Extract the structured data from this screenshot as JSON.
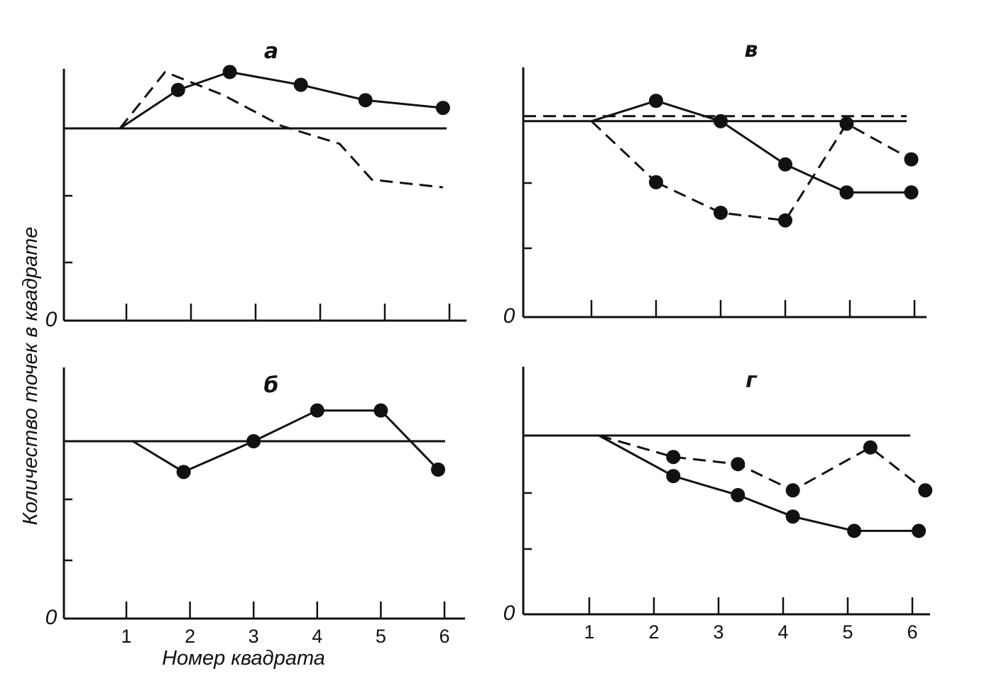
{
  "chart_data": {
    "type": "line",
    "ylabel": "Количество точек в квадрате",
    "xlabel": "Номер квадрата",
    "x_ticks": [
      "1",
      "2",
      "3",
      "4",
      "5",
      "6"
    ],
    "y_zero_label": "0",
    "reference_level": 75,
    "ylim": [
      0,
      100
    ],
    "panels": [
      {
        "id": "a",
        "title": "а",
        "series": [
          {
            "style": "solid",
            "markers": false,
            "points": [
              [
                0,
                75
              ],
              [
                1,
                75
              ],
              [
                2,
                75
              ],
              [
                3,
                75
              ],
              [
                4,
                75
              ],
              [
                5,
                75
              ],
              [
                6,
                75
              ]
            ]
          },
          {
            "style": "solid",
            "markers": true,
            "points": [
              [
                0.9,
                75
              ],
              [
                1.8,
                90
              ],
              [
                2.6,
                97
              ],
              [
                3.7,
                92
              ],
              [
                4.7,
                86
              ],
              [
                5.9,
                83
              ]
            ]
          },
          {
            "style": "dashed",
            "markers": false,
            "points": [
              [
                0.9,
                75
              ],
              [
                1.6,
                97
              ],
              [
                2.5,
                88
              ],
              [
                3.4,
                76
              ],
              [
                4.3,
                69
              ],
              [
                4.8,
                55
              ],
              [
                5.9,
                52
              ]
            ]
          }
        ]
      },
      {
        "id": "b",
        "title": "б",
        "series": [
          {
            "style": "solid",
            "markers": false,
            "points": [
              [
                0,
                75
              ],
              [
                1,
                75
              ],
              [
                2,
                75
              ],
              [
                3,
                75
              ],
              [
                4,
                75
              ],
              [
                5,
                75
              ],
              [
                6,
                75
              ]
            ]
          },
          {
            "style": "solid",
            "markers": true,
            "points": [
              [
                1.1,
                75
              ],
              [
                1.9,
                62
              ],
              [
                3.0,
                75
              ],
              [
                4.0,
                88
              ],
              [
                5.0,
                88
              ],
              [
                5.9,
                63
              ]
            ]
          }
        ]
      },
      {
        "id": "v",
        "title": "в",
        "series": [
          {
            "style": "solid",
            "markers": false,
            "points": [
              [
                0,
                77
              ],
              [
                1,
                77
              ],
              [
                2,
                77
              ],
              [
                3,
                77
              ],
              [
                4,
                77
              ],
              [
                5,
                77
              ],
              [
                6,
                77
              ]
            ]
          },
          {
            "style": "dashed",
            "markers": false,
            "points": [
              [
                0,
                79
              ],
              [
                1,
                79
              ],
              [
                2,
                79
              ],
              [
                3,
                79
              ],
              [
                4,
                79
              ],
              [
                5,
                79
              ],
              [
                6,
                79
              ]
            ]
          },
          {
            "style": "solid",
            "markers": true,
            "points": [
              [
                1.0,
                77
              ],
              [
                2.0,
                85
              ],
              [
                3.0,
                77
              ],
              [
                4.0,
                60
              ],
              [
                4.95,
                49
              ],
              [
                5.95,
                49
              ]
            ]
          },
          {
            "style": "dashed",
            "markers": false,
            "points": [
              [
                1.0,
                77
              ],
              [
                2.0,
                53
              ]
            ]
          },
          {
            "style": "dashed",
            "markers": true,
            "points": [
              [
                2.0,
                53
              ],
              [
                3.0,
                41
              ],
              [
                4.0,
                38
              ],
              [
                4.95,
                76
              ],
              [
                5.95,
                62
              ]
            ]
          }
        ]
      },
      {
        "id": "g",
        "title": "г",
        "series": [
          {
            "style": "solid",
            "markers": false,
            "points": [
              [
                0,
                75
              ],
              [
                1,
                75
              ],
              [
                2,
                75
              ],
              [
                3,
                75
              ],
              [
                4,
                75
              ],
              [
                5,
                75
              ],
              [
                6,
                75
              ]
            ]
          },
          {
            "style": "solid",
            "markers": true,
            "points": [
              [
                1.15,
                75
              ],
              [
                2.3,
                58
              ],
              [
                3.3,
                50
              ],
              [
                4.15,
                41
              ],
              [
                5.1,
                35
              ],
              [
                6.1,
                35
              ]
            ]
          },
          {
            "style": "dashed",
            "markers": false,
            "points": [
              [
                1.15,
                75
              ],
              [
                2.3,
                66
              ]
            ]
          },
          {
            "style": "dashed",
            "markers": true,
            "points": [
              [
                2.3,
                66
              ],
              [
                3.3,
                63
              ],
              [
                4.15,
                52
              ],
              [
                5.35,
                70
              ],
              [
                6.2,
                52
              ]
            ]
          }
        ]
      }
    ]
  }
}
